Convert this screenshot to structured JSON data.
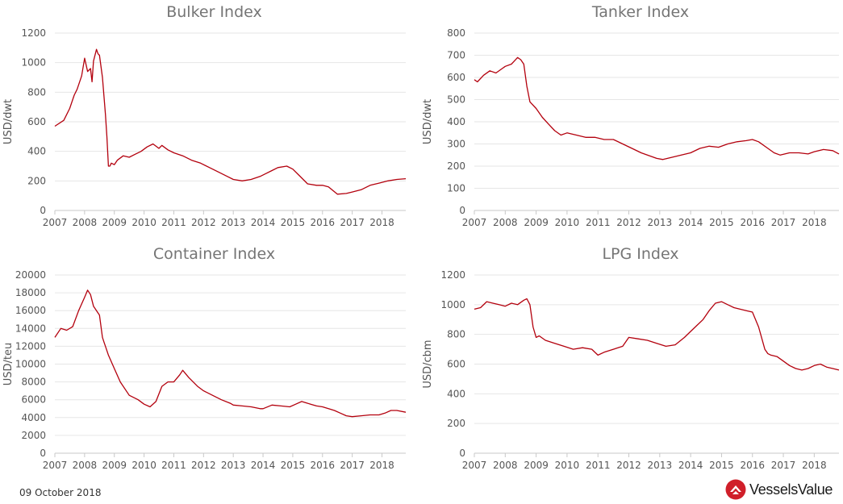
{
  "footer": {
    "date": "09 October 2018",
    "brand": "VesselsValue"
  },
  "colors": {
    "series": "#b3000d",
    "logo": "#d01f2a"
  },
  "chart_data": [
    {
      "type": "line",
      "title": "Bulker Index",
      "ylabel": "USD/dwt",
      "ylim": [
        0,
        1200
      ],
      "yticks": [
        0,
        200,
        400,
        600,
        800,
        1000,
        1200
      ],
      "xlim": [
        2007,
        2018.8
      ],
      "xticks": [
        "2007",
        "2008",
        "2009",
        "2010",
        "2011",
        "2012",
        "2013",
        "2014",
        "2015",
        "2016",
        "2017",
        "2018"
      ],
      "series": [
        {
          "x": [
            2007.0,
            2007.3,
            2007.5,
            2007.65,
            2007.75,
            2007.9,
            2008.0,
            2008.1,
            2008.2,
            2008.25,
            2008.3,
            2008.4,
            2008.45,
            2008.5,
            2008.6,
            2008.7,
            2008.75,
            2008.8,
            2008.85,
            2008.9,
            2009.0,
            2009.1,
            2009.3,
            2009.5,
            2009.7,
            2009.9,
            2010.1,
            2010.3,
            2010.5,
            2010.6,
            2010.8,
            2011.0,
            2011.3,
            2011.6,
            2011.9,
            2012.2,
            2012.5,
            2012.8,
            2013.0,
            2013.3,
            2013.6,
            2013.9,
            2014.1,
            2014.3,
            2014.5,
            2014.8,
            2015.0,
            2015.2,
            2015.5,
            2015.8,
            2016.0,
            2016.2,
            2016.5,
            2016.8,
            2017.0,
            2017.3,
            2017.6,
            2017.9,
            2018.2,
            2018.5,
            2018.8
          ],
          "y": [
            570,
            610,
            690,
            780,
            820,
            910,
            1030,
            940,
            960,
            870,
            1010,
            1090,
            1060,
            1050,
            900,
            650,
            500,
            300,
            300,
            320,
            310,
            340,
            370,
            360,
            380,
            400,
            430,
            450,
            420,
            440,
            410,
            390,
            370,
            340,
            320,
            290,
            260,
            230,
            210,
            200,
            210,
            230,
            250,
            270,
            290,
            300,
            280,
            240,
            180,
            170,
            170,
            160,
            110,
            115,
            125,
            140,
            170,
            185,
            200,
            210,
            215
          ]
        }
      ]
    },
    {
      "type": "line",
      "title": "Tanker Index",
      "ylabel": "USD/dwt",
      "ylim": [
        0,
        800
      ],
      "yticks": [
        0,
        100,
        200,
        300,
        400,
        500,
        600,
        700,
        800
      ],
      "xlim": [
        2007,
        2018.8
      ],
      "xticks": [
        "2007",
        "2008",
        "2009",
        "2010",
        "2011",
        "2012",
        "2013",
        "2014",
        "2015",
        "2016",
        "2017",
        "2018"
      ],
      "series": [
        {
          "x": [
            2007.0,
            2007.1,
            2007.3,
            2007.5,
            2007.7,
            2007.9,
            2008.0,
            2008.2,
            2008.4,
            2008.5,
            2008.6,
            2008.7,
            2008.8,
            2009.0,
            2009.2,
            2009.4,
            2009.6,
            2009.8,
            2010.0,
            2010.3,
            2010.6,
            2010.9,
            2011.2,
            2011.5,
            2011.8,
            2012.1,
            2012.4,
            2012.7,
            2012.9,
            2013.1,
            2013.4,
            2013.7,
            2014.0,
            2014.3,
            2014.6,
            2014.9,
            2015.2,
            2015.5,
            2015.8,
            2016.0,
            2016.2,
            2016.5,
            2016.7,
            2016.9,
            2017.2,
            2017.5,
            2017.8,
            2018.0,
            2018.3,
            2018.6,
            2018.8
          ],
          "y": [
            590,
            580,
            610,
            630,
            620,
            640,
            650,
            660,
            690,
            680,
            660,
            560,
            490,
            460,
            420,
            390,
            360,
            340,
            350,
            340,
            330,
            330,
            320,
            320,
            300,
            280,
            260,
            245,
            235,
            230,
            240,
            250,
            260,
            280,
            290,
            285,
            300,
            310,
            315,
            320,
            310,
            280,
            260,
            250,
            260,
            260,
            255,
            265,
            275,
            270,
            255
          ]
        }
      ]
    },
    {
      "type": "line",
      "title": "Container Index",
      "ylabel": "USD/teu",
      "ylim": [
        0,
        20000
      ],
      "yticks": [
        0,
        2000,
        4000,
        6000,
        8000,
        10000,
        12000,
        14000,
        16000,
        18000,
        20000
      ],
      "xlim": [
        2007,
        2018.8
      ],
      "xticks": [
        "2007",
        "2008",
        "2009",
        "2010",
        "2011",
        "2012",
        "2013",
        "2014",
        "2015",
        "2016",
        "2017",
        "2018"
      ],
      "series": [
        {
          "x": [
            2007.0,
            2007.2,
            2007.4,
            2007.6,
            2007.8,
            2008.0,
            2008.1,
            2008.2,
            2008.3,
            2008.4,
            2008.5,
            2008.6,
            2008.65,
            2008.7,
            2008.8,
            2009.0,
            2009.2,
            2009.5,
            2009.8,
            2010.0,
            2010.2,
            2010.4,
            2010.6,
            2010.8,
            2011.0,
            2011.2,
            2011.3,
            2011.5,
            2011.8,
            2012.0,
            2012.3,
            2012.6,
            2012.9,
            2013.0,
            2013.3,
            2013.6,
            2013.9,
            2014.0,
            2014.3,
            2014.6,
            2014.9,
            2015.1,
            2015.3,
            2015.6,
            2015.8,
            2016.0,
            2016.2,
            2016.4,
            2016.6,
            2016.8,
            2017.0,
            2017.3,
            2017.6,
            2017.9,
            2018.1,
            2018.3,
            2018.5,
            2018.8
          ],
          "y": [
            13000,
            14000,
            13800,
            14200,
            16000,
            17500,
            18300,
            17800,
            16500,
            16000,
            15500,
            13000,
            12500,
            12000,
            11000,
            9500,
            8000,
            6500,
            6000,
            5500,
            5200,
            5800,
            7500,
            8000,
            8000,
            8800,
            9300,
            8500,
            7500,
            7000,
            6500,
            6000,
            5600,
            5400,
            5300,
            5200,
            5000,
            5000,
            5400,
            5300,
            5200,
            5500,
            5800,
            5500,
            5300,
            5200,
            5000,
            4800,
            4500,
            4200,
            4100,
            4200,
            4300,
            4300,
            4500,
            4800,
            4800,
            4600
          ]
        }
      ]
    },
    {
      "type": "line",
      "title": "LPG Index",
      "ylabel": "USD/cbm",
      "ylim": [
        0,
        1200
      ],
      "yticks": [
        0,
        200,
        400,
        600,
        800,
        1000,
        1200
      ],
      "xlim": [
        2007,
        2018.8
      ],
      "xticks": [
        "2007",
        "2008",
        "2009",
        "2010",
        "2011",
        "2012",
        "2013",
        "2014",
        "2015",
        "2016",
        "2017",
        "2018"
      ],
      "series": [
        {
          "x": [
            2007.0,
            2007.2,
            2007.4,
            2007.6,
            2007.8,
            2008.0,
            2008.2,
            2008.4,
            2008.6,
            2008.7,
            2008.8,
            2008.9,
            2009.0,
            2009.1,
            2009.3,
            2009.6,
            2009.9,
            2010.2,
            2010.5,
            2010.8,
            2011.0,
            2011.2,
            2011.5,
            2011.8,
            2012.0,
            2012.3,
            2012.6,
            2012.9,
            2013.2,
            2013.5,
            2013.8,
            2014.0,
            2014.2,
            2014.4,
            2014.6,
            2014.8,
            2015.0,
            2015.2,
            2015.4,
            2015.6,
            2015.8,
            2016.0,
            2016.2,
            2016.4,
            2016.5,
            2016.6,
            2016.8,
            2017.0,
            2017.2,
            2017.4,
            2017.6,
            2017.8,
            2018.0,
            2018.2,
            2018.4,
            2018.6,
            2018.8
          ],
          "y": [
            970,
            980,
            1020,
            1010,
            1000,
            990,
            1010,
            1000,
            1030,
            1040,
            1000,
            850,
            780,
            790,
            760,
            740,
            720,
            700,
            710,
            700,
            660,
            680,
            700,
            720,
            780,
            770,
            760,
            740,
            720,
            730,
            780,
            820,
            860,
            900,
            960,
            1010,
            1020,
            1000,
            980,
            970,
            960,
            950,
            850,
            700,
            670,
            660,
            650,
            620,
            590,
            570,
            560,
            570,
            590,
            600,
            580,
            570,
            560
          ]
        }
      ]
    }
  ]
}
